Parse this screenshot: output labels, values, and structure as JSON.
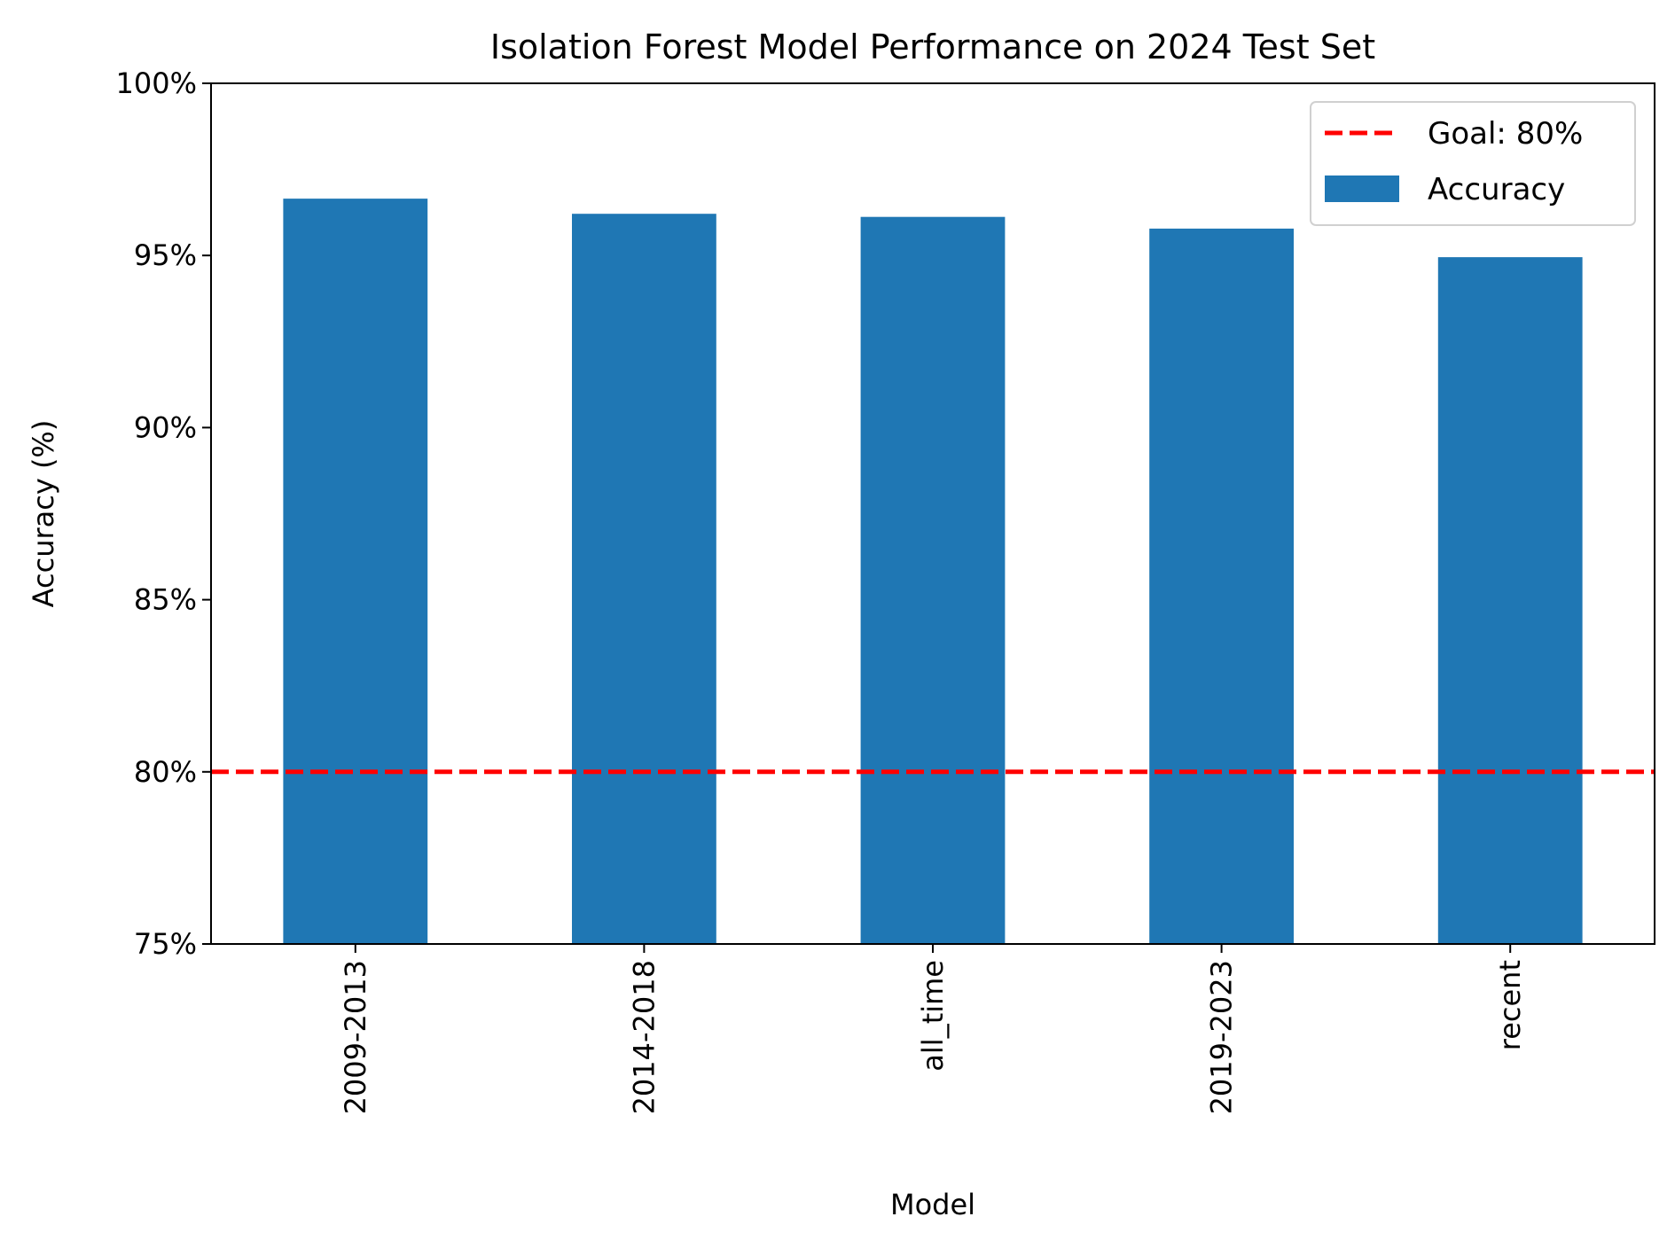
{
  "chart_data": {
    "type": "bar",
    "title": "Isolation Forest Model Performance on 2024 Test Set",
    "xlabel": "Model",
    "ylabel": "Accuracy (%)",
    "categories": [
      "2009-2013",
      "2014-2018",
      "all_time",
      "2019-2023",
      "recent"
    ],
    "series": [
      {
        "name": "Accuracy",
        "values": [
          96.65,
          96.21,
          96.12,
          95.78,
          94.95
        ],
        "color": "#1f77b4"
      }
    ],
    "ylim": [
      75,
      100
    ],
    "yticks": [
      75,
      80,
      85,
      90,
      95,
      100
    ],
    "ytick_labels": [
      "75%",
      "80%",
      "85%",
      "90%",
      "95%",
      "100%"
    ],
    "goal_line": {
      "value": 80,
      "label": "Goal: 80%",
      "color": "#ff0000",
      "style": "dashed"
    },
    "legend": {
      "placement": "top-right",
      "entries": [
        "Goal: 80%",
        "Accuracy"
      ]
    },
    "grid": false
  }
}
